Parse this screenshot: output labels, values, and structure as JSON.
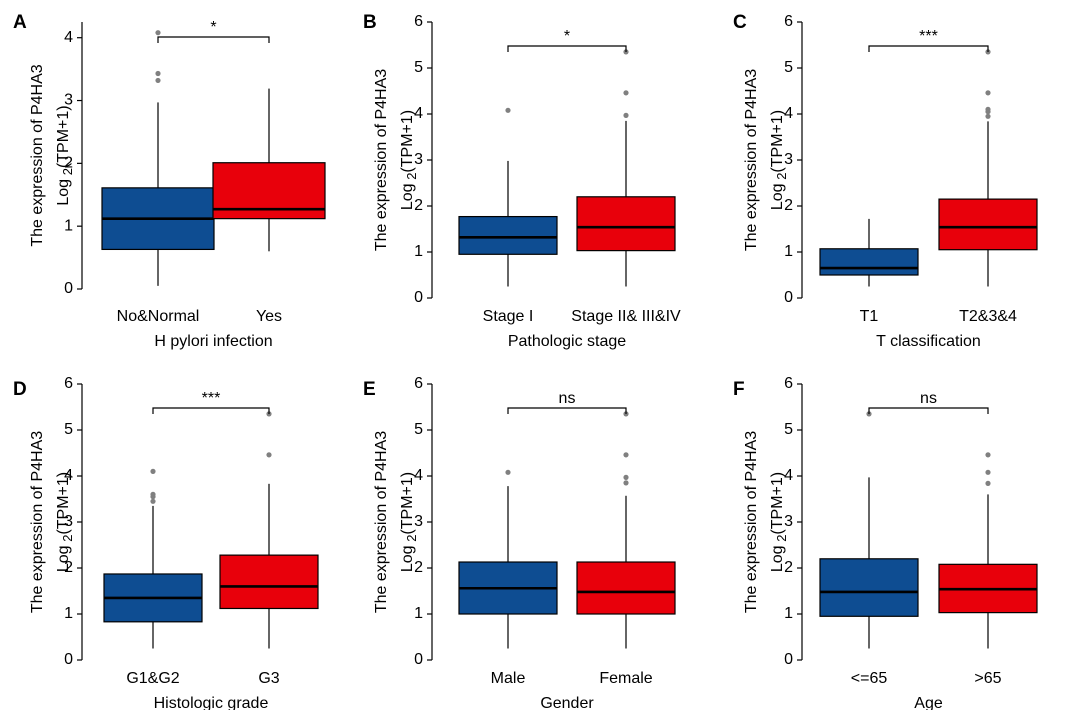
{
  "figure": {
    "colors": {
      "group1": "#0E4D92",
      "group2": "#E8000B",
      "outlier": "#808080",
      "line": "#000000"
    }
  },
  "chart_data": [
    {
      "panel": "A",
      "type": "box",
      "ylabel_line1": "The expression of P4HA3",
      "ylabel_log": "Log",
      "ylabel_sub": "2",
      "ylabel_rest": "(TPM+1)",
      "xlabel": "H pylori infection",
      "ylim": [
        0,
        4.25
      ],
      "yticks": [
        0,
        1,
        2,
        3,
        4
      ],
      "significance": "*",
      "groups": [
        {
          "name": "No&Normal",
          "min": 0.05,
          "q1": 0.63,
          "median": 1.12,
          "q3": 1.61,
          "max": 2.97,
          "outliers": [
            3.32,
            3.43,
            4.08
          ]
        },
        {
          "name": "Yes",
          "min": 0.6,
          "q1": 1.12,
          "median": 1.27,
          "q3": 2.01,
          "max": 3.19,
          "outliers": []
        }
      ]
    },
    {
      "panel": "B",
      "type": "box",
      "ylabel_line1": "The expression of P4HA3",
      "ylabel_log": "Log",
      "ylabel_sub": "2",
      "ylabel_rest": "(TPM+1)",
      "xlabel": "Pathologic stage",
      "ylim": [
        0,
        6
      ],
      "yticks": [
        0,
        1,
        2,
        3,
        4,
        5,
        6
      ],
      "significance": "*",
      "groups": [
        {
          "name": "Stage I",
          "min": 0.25,
          "q1": 0.95,
          "median": 1.32,
          "q3": 1.77,
          "max": 2.98,
          "outliers": [
            4.08
          ]
        },
        {
          "name": "Stage II& III&IV",
          "min": 0.25,
          "q1": 1.03,
          "median": 1.54,
          "q3": 2.2,
          "max": 3.85,
          "outliers": [
            3.97,
            4.46,
            5.35
          ]
        }
      ]
    },
    {
      "panel": "C",
      "type": "box",
      "ylabel_line1": "The expression of P4HA3",
      "ylabel_log": "Log",
      "ylabel_sub": "2",
      "ylabel_rest": "(TPM+1)",
      "xlabel": "T classification",
      "ylim": [
        0,
        6
      ],
      "yticks": [
        0,
        1,
        2,
        3,
        4,
        5,
        6
      ],
      "significance": "***",
      "groups": [
        {
          "name": "T1",
          "min": 0.25,
          "q1": 0.5,
          "median": 0.65,
          "q3": 1.07,
          "max": 1.72,
          "outliers": []
        },
        {
          "name": "T2&3&4",
          "min": 0.25,
          "q1": 1.05,
          "median": 1.54,
          "q3": 2.15,
          "max": 3.84,
          "outliers": [
            3.95,
            4.05,
            4.1,
            4.46,
            5.35
          ]
        }
      ]
    },
    {
      "panel": "D",
      "type": "box",
      "ylabel_line1": "The expression of P4HA3",
      "ylabel_log": "Log",
      "ylabel_sub": "2",
      "ylabel_rest": "(TPM+1)",
      "xlabel": "Histologic grade",
      "ylim": [
        0,
        6
      ],
      "yticks": [
        0,
        1,
        2,
        3,
        4,
        5,
        6
      ],
      "significance": "***",
      "groups": [
        {
          "name": "G1&G2",
          "min": 0.25,
          "q1": 0.83,
          "median": 1.35,
          "q3": 1.87,
          "max": 3.35,
          "outliers": [
            3.45,
            3.55,
            3.6,
            4.1
          ]
        },
        {
          "name": "G3",
          "min": 0.25,
          "q1": 1.12,
          "median": 1.6,
          "q3": 2.28,
          "max": 3.83,
          "outliers": [
            4.46,
            5.35
          ]
        }
      ]
    },
    {
      "panel": "E",
      "type": "box",
      "ylabel_line1": "The expression of P4HA3",
      "ylabel_log": "Log",
      "ylabel_sub": "2",
      "ylabel_rest": "(TPM+1)",
      "xlabel": "Gender",
      "ylim": [
        0,
        6
      ],
      "yticks": [
        0,
        1,
        2,
        3,
        4,
        5,
        6
      ],
      "significance": "ns",
      "groups": [
        {
          "name": "Male",
          "min": 0.25,
          "q1": 1.0,
          "median": 1.56,
          "q3": 2.13,
          "max": 3.78,
          "outliers": [
            4.08
          ]
        },
        {
          "name": "Female",
          "min": 0.25,
          "q1": 1.0,
          "median": 1.48,
          "q3": 2.13,
          "max": 3.57,
          "outliers": [
            3.85,
            3.97,
            4.46,
            5.35
          ]
        }
      ]
    },
    {
      "panel": "F",
      "type": "box",
      "ylabel_line1": "The expression of P4HA3",
      "ylabel_log": "Log",
      "ylabel_sub": "2",
      "ylabel_rest": "(TPM+1)",
      "xlabel": "Age",
      "ylim": [
        0,
        6
      ],
      "yticks": [
        0,
        1,
        2,
        3,
        4,
        5,
        6
      ],
      "significance": "ns",
      "groups": [
        {
          "name": "<=65",
          "min": 0.25,
          "q1": 0.95,
          "median": 1.48,
          "q3": 2.2,
          "max": 3.97,
          "outliers": [
            5.35
          ]
        },
        {
          "name": ">65",
          "min": 0.25,
          "q1": 1.03,
          "median": 1.54,
          "q3": 2.08,
          "max": 3.6,
          "outliers": [
            3.84,
            4.08,
            4.46
          ]
        }
      ]
    }
  ]
}
